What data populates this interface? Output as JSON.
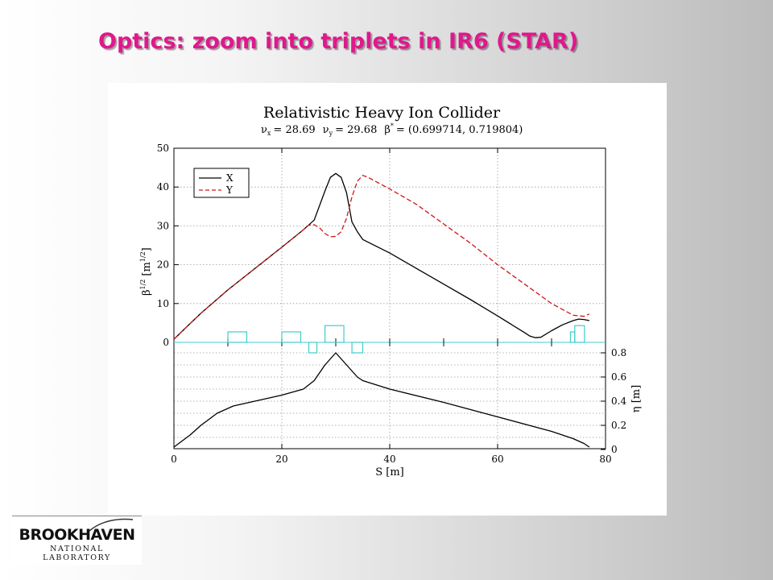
{
  "slide": {
    "title": "Optics: zoom into triplets in IR6 (STAR)"
  },
  "logo": {
    "name": "BROOKHAVEN",
    "subtitle": "NATIONAL LABORATORY"
  },
  "colors": {
    "title": "#e0188c",
    "series_x": "#000000",
    "series_y": "#cc1a1a",
    "magnets": "#40cccc"
  },
  "chart_data": {
    "type": "line",
    "title": "Relativistic Heavy Ion Collider",
    "subtitle": {
      "nu_x_label": "ν",
      "nu_x_sub": "x",
      "nu_x_value": "= 28.69",
      "nu_y_label": "ν",
      "nu_y_sub": "y",
      "nu_y_value": "= 29.68",
      "beta_label": "β",
      "beta_sup": "*",
      "beta_value": "= (0.699714, 0.719804)"
    },
    "xlabel": "S [m]",
    "ylabel_top": "β",
    "ylabel_top_sup": "1/2",
    "ylabel_top_unit": "[m",
    "ylabel_top_unit_sup": "1/2",
    "ylabel_top_close": "]",
    "ylabel_bottom": "η [m]",
    "xlim": [
      0,
      80
    ],
    "ylim_top": [
      0,
      50
    ],
    "ylim_bottom": [
      0,
      0.9
    ],
    "x_ticks": [
      "0",
      "20",
      "40",
      "60",
      "80"
    ],
    "y_ticks_top": [
      "0",
      "10",
      "20",
      "30",
      "40",
      "50"
    ],
    "y_ticks_bottom": [
      "0",
      "0.2",
      "0.4",
      "0.6",
      "0.8"
    ],
    "grid": true,
    "legend_position": "top-left",
    "series": [
      {
        "name": "X",
        "style": "solid",
        "axis": "top",
        "x": [
          0,
          2,
          5,
          10,
          15,
          20,
          24,
          26,
          28,
          29,
          30,
          31,
          32,
          33,
          34,
          35,
          40,
          45,
          50,
          55,
          60,
          65,
          66,
          67,
          68,
          70,
          72,
          74,
          75,
          76,
          77
        ],
        "y": [
          0.8,
          3.5,
          7.5,
          13.5,
          19,
          24.5,
          29,
          31.5,
          39,
          42.5,
          43.5,
          42.5,
          38.5,
          31,
          28.5,
          26.5,
          23,
          19,
          15,
          11,
          6.8,
          2.5,
          1.6,
          1.2,
          1.3,
          3,
          4.5,
          5.6,
          6,
          5.9,
          5.6
        ]
      },
      {
        "name": "Y",
        "style": "dashed",
        "axis": "top",
        "x": [
          0,
          2,
          5,
          10,
          15,
          20,
          24,
          25,
          26,
          27,
          28,
          29,
          30,
          31,
          32,
          33,
          34,
          35,
          36,
          40,
          45,
          50,
          55,
          60,
          65,
          70,
          74,
          76,
          77
        ],
        "y": [
          0.8,
          3.5,
          7.5,
          13.5,
          19,
          24.5,
          29,
          30.2,
          30.3,
          29.5,
          28,
          27.2,
          27.3,
          28.5,
          32,
          37.5,
          41.5,
          43,
          42.5,
          39.5,
          35.5,
          30.5,
          25.5,
          20,
          15,
          10,
          7,
          6.7,
          7.3
        ]
      },
      {
        "name": "η",
        "style": "solid",
        "axis": "bottom",
        "x": [
          0,
          3,
          5,
          8,
          11,
          15,
          20,
          24,
          26,
          28,
          30,
          32,
          34,
          35,
          40,
          50,
          60,
          70,
          74,
          76,
          77
        ],
        "y": [
          0.02,
          0.12,
          0.2,
          0.3,
          0.36,
          0.4,
          0.45,
          0.5,
          0.57,
          0.7,
          0.8,
          0.7,
          0.6,
          0.57,
          0.5,
          0.39,
          0.27,
          0.15,
          0.09,
          0.05,
          0.02
        ]
      }
    ],
    "magnets": [
      {
        "s": 10,
        "length": 3.5,
        "strength": 1
      },
      {
        "s": 20,
        "length": 3.5,
        "strength": 1
      },
      {
        "s": 25,
        "length": 1.5,
        "strength": -1
      },
      {
        "s": 28,
        "length": 3.5,
        "strength": 1.6
      },
      {
        "s": 33,
        "length": 2,
        "strength": -1
      },
      {
        "s": 73.5,
        "length": 0.8,
        "strength": 1
      },
      {
        "s": 74.3,
        "length": 1.8,
        "strength": 1.6
      }
    ],
    "marker_ticks_s": [
      10,
      20,
      30,
      40,
      50,
      60,
      70
    ]
  }
}
